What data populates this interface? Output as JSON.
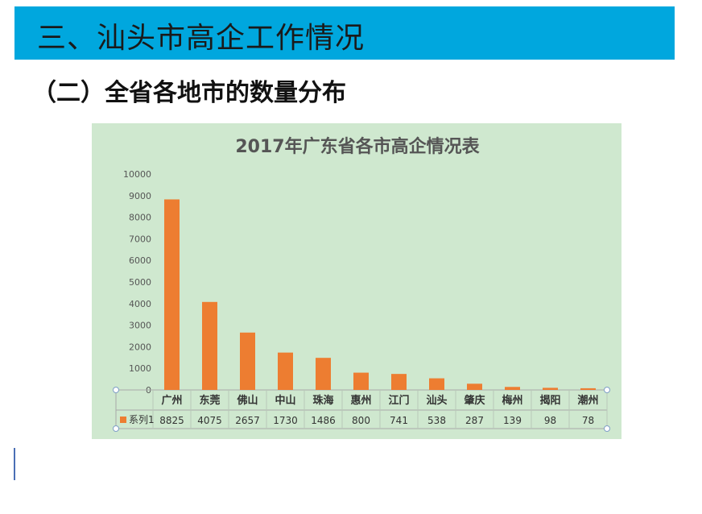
{
  "slide": {
    "title": "三、汕头市高企工作情况",
    "subtitle": "（二）全省各地市的数量分布"
  },
  "colors": {
    "title_bar": "#00a7de",
    "chart_background": "#cfe8cf",
    "bar": "#ed7d31"
  },
  "chart_data": {
    "type": "bar",
    "title": "2017年广东省各市高企情况表",
    "categories": [
      "广州",
      "东莞",
      "佛山",
      "中山",
      "珠海",
      "惠州",
      "江门",
      "汕头",
      "肇庆",
      "梅州",
      "揭阳",
      "潮州"
    ],
    "series": [
      {
        "name": "系列1",
        "values": [
          8825,
          4075,
          2657,
          1730,
          1486,
          800,
          741,
          538,
          287,
          139,
          98,
          78
        ]
      }
    ],
    "yticks": [
      0,
      1000,
      2000,
      3000,
      4000,
      5000,
      6000,
      7000,
      8000,
      9000,
      10000
    ],
    "ylim": [
      0,
      10000
    ],
    "xlabel": "",
    "ylabel": "",
    "grid": false,
    "legend": "data-table",
    "data_table": true
  }
}
